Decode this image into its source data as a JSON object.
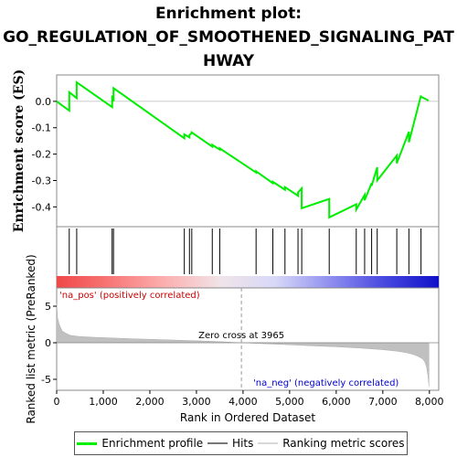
{
  "chart_data": {
    "type": "line",
    "title_lines": [
      "Enrichment plot:",
      "GO_REGULATION_OF_SMOOTHENED_SIGNALING_PAT",
      "HWAY"
    ],
    "xlabel": "Rank in Ordered Dataset",
    "ylabel_top": "Enrichment score (ES)",
    "ylabel_bottom": "Ranked list metric (PreRanked)",
    "xlim": [
      0,
      8200
    ],
    "x_ticks": [
      0,
      1000,
      2000,
      3000,
      4000,
      5000,
      6000,
      7000,
      8000
    ],
    "x_tick_labels": [
      "0",
      "1,000",
      "2,000",
      "3,000",
      "4,000",
      "5,000",
      "6,000",
      "7,000",
      "8,000"
    ],
    "es_ylim": [
      -0.475,
      0.1
    ],
    "es_ticks": [
      0.0,
      -0.1,
      -0.2,
      -0.3,
      -0.4
    ],
    "es_tick_labels": [
      "0.0",
      "-0.1",
      "-0.2",
      "-0.3",
      "-0.4"
    ],
    "metric_ylim": [
      -6.5,
      7.5
    ],
    "metric_ticks": [
      5,
      0,
      -5
    ],
    "metric_tick_labels": [
      "5",
      "0",
      "-5"
    ],
    "enrichment_profile": {
      "name": "Enrichment profile",
      "color": "#00ee00",
      "x": [
        0,
        270,
        270,
        430,
        430,
        1190,
        1190,
        1220,
        1220,
        2740,
        2740,
        2850,
        2850,
        2900,
        2900,
        3340,
        3340,
        3500,
        3500,
        4280,
        4280,
        4640,
        4640,
        4900,
        4900,
        5180,
        5180,
        5260,
        5260,
        5850,
        5850,
        6430,
        6430,
        6610,
        6610,
        6760,
        6760,
        6880,
        6880,
        7300,
        7300,
        7560,
        7560,
        7820,
        7820,
        7980
      ],
      "y": [
        0.0,
        -0.035,
        0.035,
        0.012,
        0.072,
        -0.022,
        0.022,
        0.0,
        0.05,
        -0.14,
        -0.125,
        -0.137,
        -0.128,
        -0.12,
        -0.118,
        -0.172,
        -0.165,
        -0.183,
        -0.178,
        -0.27,
        -0.265,
        -0.31,
        -0.305,
        -0.335,
        -0.325,
        -0.358,
        -0.345,
        -0.33,
        -0.405,
        -0.37,
        -0.44,
        -0.39,
        -0.41,
        -0.355,
        -0.375,
        -0.31,
        -0.32,
        -0.25,
        -0.3,
        -0.205,
        -0.235,
        -0.115,
        -0.155,
        0.022,
        0.018,
        0.003
      ]
    },
    "hits": {
      "name": "Hits",
      "color": "#000000",
      "x": [
        270,
        430,
        1190,
        1220,
        2740,
        2850,
        2900,
        3340,
        3500,
        4280,
        4640,
        4900,
        5180,
        5260,
        5850,
        6430,
        6610,
        6760,
        6880,
        7300,
        7560,
        7820
      ]
    },
    "ranking_metric": {
      "name": "Ranking metric scores",
      "color": "#c0c0c0",
      "x": [
        0,
        20,
        60,
        120,
        200,
        300,
        500,
        800,
        1200,
        1600,
        2000,
        2500,
        3000,
        3500,
        3965,
        4500,
        5000,
        5500,
        6000,
        6500,
        7000,
        7300,
        7500,
        7650,
        7750,
        7850,
        7900,
        7940,
        7970,
        7990
      ],
      "y": [
        5.4,
        3.4,
        2.4,
        1.6,
        1.3,
        1.0,
        0.85,
        0.75,
        0.65,
        0.55,
        0.48,
        0.38,
        0.28,
        0.15,
        0.0,
        -0.15,
        -0.28,
        -0.42,
        -0.55,
        -0.72,
        -0.95,
        -1.15,
        -1.35,
        -1.6,
        -1.85,
        -2.2,
        -2.6,
        -3.3,
        -4.6,
        -6.0
      ]
    },
    "zero_cross": {
      "x": 3965,
      "label": "Zero cross at 3965"
    },
    "pos_label": "'na_pos' (positively correlated)",
    "neg_label": "'na_neg' (negatively correlated)",
    "legend": [
      "Enrichment profile",
      "Hits",
      "Ranking metric scores"
    ],
    "legend_placement": "bottom",
    "gradient_bar": {
      "colors": [
        "#f04848",
        "#f87878",
        "#fcb0b0",
        "#f0e4e8",
        "#d8d8f8",
        "#9090f0",
        "#4848e0",
        "#1010c8"
      ]
    }
  }
}
